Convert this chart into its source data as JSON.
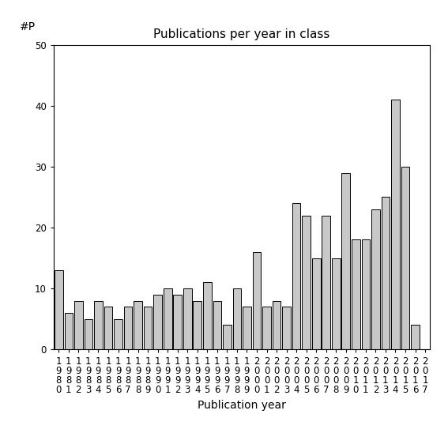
{
  "title": "Publications per year in class",
  "xlabel": "Publication year",
  "ylabel": "#P",
  "years": [
    1980,
    1981,
    1982,
    1983,
    1984,
    1985,
    1986,
    1987,
    1988,
    1989,
    1990,
    1991,
    1992,
    1993,
    1994,
    1995,
    1996,
    1997,
    1998,
    1999,
    2000,
    2001,
    2002,
    2003,
    2004,
    2005,
    2006,
    2007,
    2008,
    2009,
    2010,
    2011,
    2012,
    2013,
    2014,
    2015,
    2016,
    2017
  ],
  "values": [
    13,
    6,
    8,
    5,
    8,
    7,
    5,
    7,
    8,
    7,
    9,
    10,
    9,
    10,
    8,
    11,
    8,
    4,
    10,
    7,
    16,
    7,
    8,
    7,
    24,
    22,
    15,
    22,
    15,
    29,
    18,
    18,
    23,
    25,
    41,
    30,
    4,
    0
  ],
  "bar_color": "#c8c8c8",
  "bar_edgecolor": "#000000",
  "ylim": [
    0,
    50
  ],
  "yticks": [
    0,
    10,
    20,
    30,
    40,
    50
  ],
  "bg_color": "#ffffff",
  "title_fontsize": 11,
  "label_fontsize": 10,
  "tick_fontsize": 8.5
}
